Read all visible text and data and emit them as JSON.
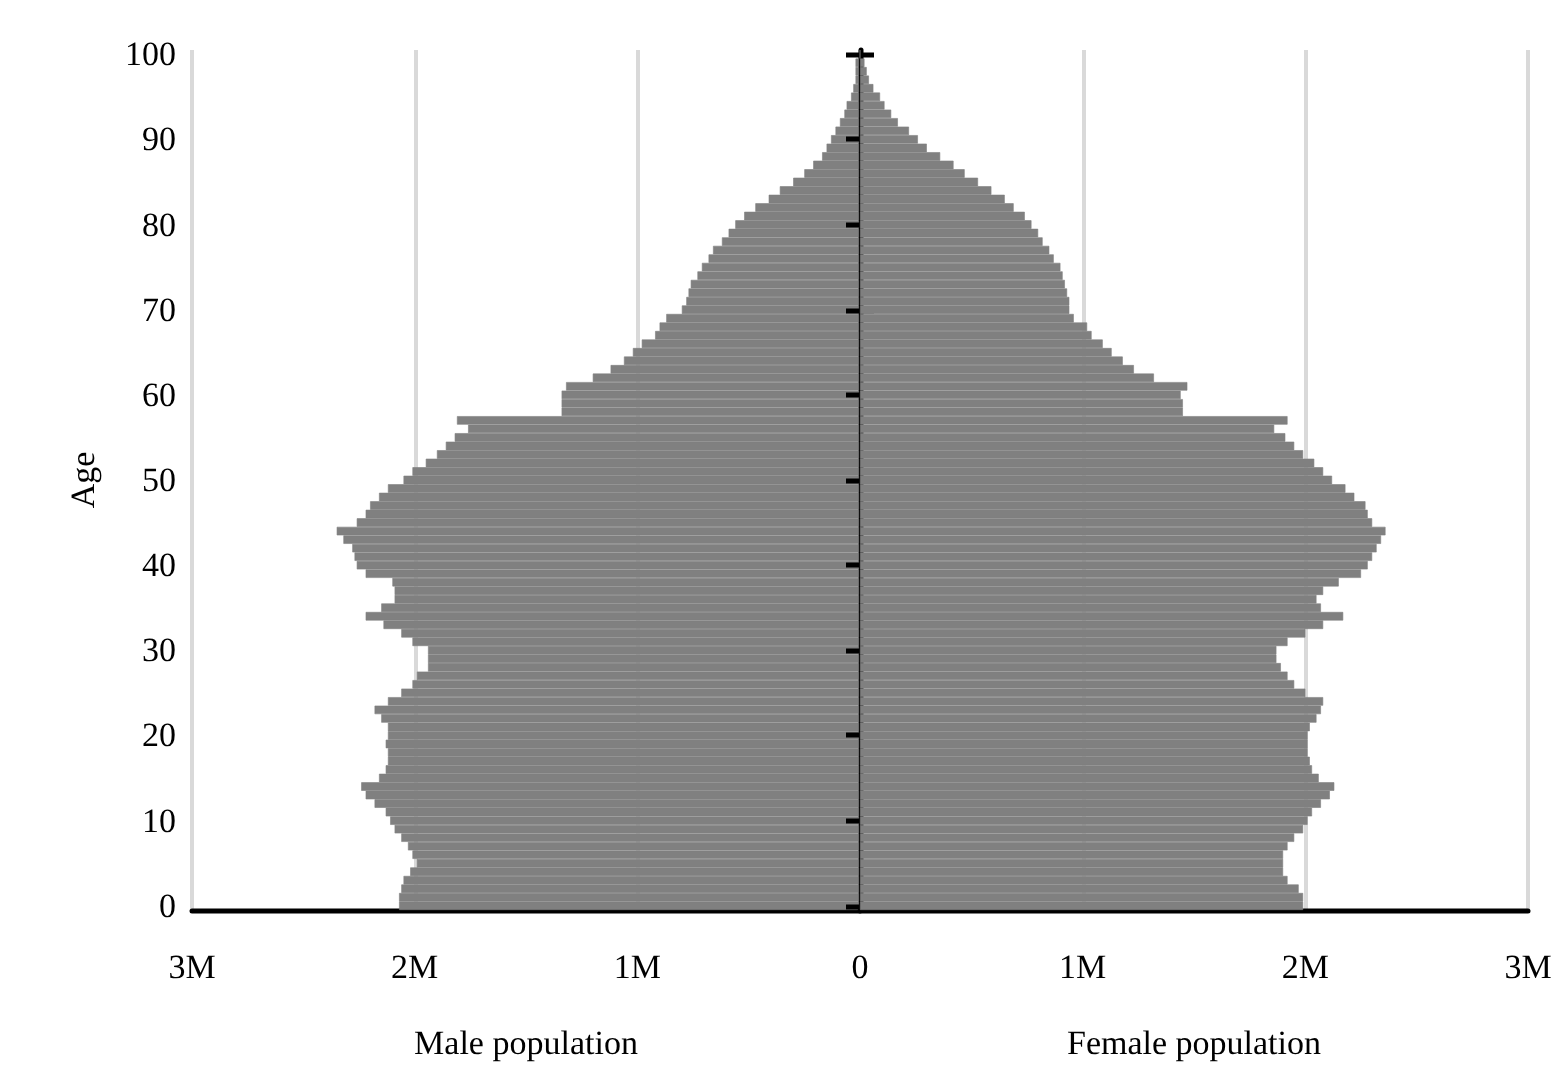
{
  "chart_data": [
    {
      "type": "bar",
      "orientation": "horizontal",
      "ylabel": "Age",
      "xlabel": "Male population",
      "categories": [
        "100",
        null,
        null,
        null,
        null,
        null,
        null,
        null,
        null,
        null,
        "90",
        null,
        null,
        null,
        null,
        null,
        null,
        null,
        null,
        null,
        "80",
        null,
        null,
        null,
        null,
        null,
        null,
        null,
        null,
        null,
        "70",
        null,
        null,
        null,
        null,
        null,
        null,
        null,
        null,
        null,
        "60",
        null,
        null,
        null,
        null,
        null,
        null,
        null,
        null,
        null,
        "50",
        null,
        null,
        null,
        null,
        null,
        null,
        null,
        null,
        null,
        "40",
        null,
        null,
        null,
        null,
        null,
        null,
        null,
        null,
        null,
        "30",
        null,
        null,
        null,
        null,
        null,
        null,
        null,
        null,
        null,
        "20",
        null,
        null,
        null,
        null,
        null,
        null,
        null,
        null,
        null,
        "10",
        null,
        null,
        null,
        null,
        null,
        null,
        null,
        null,
        null,
        "0"
      ],
      "series": [
        {
          "color": "#808080",
          "values": [
            0,
            0.02,
            0.02,
            0.02,
            0.03,
            0.04,
            0.06,
            0.07,
            0.09,
            0.11,
            0.13,
            0.15,
            0.17,
            0.21,
            0.25,
            0.3,
            0.36,
            0.41,
            0.47,
            0.52,
            0.56,
            0.59,
            0.62,
            0.66,
            0.68,
            0.71,
            0.73,
            0.76,
            0.77,
            0.78,
            0.8,
            0.87,
            0.9,
            0.92,
            0.98,
            1.02,
            1.06,
            1.12,
            1.2,
            1.32,
            1.34,
            1.34,
            1.34,
            1.81,
            1.76,
            1.82,
            1.86,
            1.9,
            1.95,
            2.01,
            2.05,
            2.12,
            2.16,
            2.2,
            2.22,
            2.26,
            2.35,
            2.32,
            2.28,
            2.27,
            2.26,
            2.22,
            2.1,
            2.09,
            2.09,
            2.15,
            2.22,
            2.14,
            2.06,
            2.01,
            1.94,
            1.94,
            1.94,
            1.99,
            2.01,
            2.06,
            2.12,
            2.18,
            2.15,
            2.12,
            2.12,
            2.13,
            2.12,
            2.12,
            2.13,
            2.16,
            2.24,
            2.22,
            2.18,
            2.13,
            2.11,
            2.09,
            2.06,
            2.03,
            2.01,
            1.99,
            2.02,
            2.05,
            2.06,
            2.07,
            2.07
          ]
        }
      ],
      "xlim": [
        3,
        0
      ],
      "xticks": [
        {
          "value": 3,
          "label": "3M"
        },
        {
          "value": 2,
          "label": "2M"
        },
        {
          "value": 1,
          "label": "1M"
        },
        {
          "value": 0,
          "label": null
        }
      ],
      "grid": "x"
    },
    {
      "type": "bar",
      "orientation": "horizontal",
      "xlabel": "Female population",
      "tick_labels": "x",
      "categories": [
        "100",
        null,
        null,
        null,
        null,
        null,
        null,
        null,
        null,
        null,
        "90",
        null,
        null,
        null,
        null,
        null,
        null,
        null,
        null,
        null,
        "80",
        null,
        null,
        null,
        null,
        null,
        null,
        null,
        null,
        null,
        "70",
        null,
        null,
        null,
        null,
        null,
        null,
        null,
        null,
        null,
        "60",
        null,
        null,
        null,
        null,
        null,
        null,
        null,
        null,
        null,
        "50",
        null,
        null,
        null,
        null,
        null,
        null,
        null,
        null,
        null,
        "40",
        null,
        null,
        null,
        null,
        null,
        null,
        null,
        null,
        null,
        "30",
        null,
        null,
        null,
        null,
        null,
        null,
        null,
        null,
        null,
        "20",
        null,
        null,
        null,
        null,
        null,
        null,
        null,
        null,
        null,
        "10",
        null,
        null,
        null,
        null,
        null,
        null,
        null,
        null,
        null,
        "0"
      ],
      "series": [
        {
          "color": "#808080",
          "values": [
            0,
            0.02,
            0.03,
            0.04,
            0.06,
            0.09,
            0.11,
            0.14,
            0.17,
            0.22,
            0.26,
            0.3,
            0.36,
            0.42,
            0.47,
            0.53,
            0.59,
            0.65,
            0.69,
            0.74,
            0.77,
            0.8,
            0.82,
            0.85,
            0.87,
            0.9,
            0.91,
            0.92,
            0.93,
            0.94,
            0.94,
            0.96,
            1.02,
            1.04,
            1.09,
            1.13,
            1.18,
            1.23,
            1.32,
            1.47,
            1.44,
            1.45,
            1.45,
            1.92,
            1.86,
            1.91,
            1.95,
            1.99,
            2.04,
            2.08,
            2.12,
            2.18,
            2.22,
            2.27,
            2.28,
            2.3,
            2.36,
            2.34,
            2.32,
            2.3,
            2.28,
            2.25,
            2.15,
            2.08,
            2.05,
            2.07,
            2.17,
            2.08,
            2.0,
            1.92,
            1.87,
            1.87,
            1.89,
            1.92,
            1.95,
            2.0,
            2.08,
            2.07,
            2.05,
            2.02,
            2.01,
            2.01,
            2.01,
            2.02,
            2.03,
            2.06,
            2.13,
            2.11,
            2.07,
            2.03,
            2.01,
            1.99,
            1.95,
            1.92,
            1.9,
            1.9,
            1.9,
            1.92,
            1.97,
            1.99,
            1.99
          ]
        }
      ],
      "xlim": [
        0,
        3
      ],
      "xticks": [
        0,
        {
          "value": 1,
          "label": "1M"
        },
        {
          "value": 2,
          "label": "2M"
        },
        {
          "value": 3,
          "label": "3M"
        }
      ],
      "grid": "x"
    }
  ]
}
